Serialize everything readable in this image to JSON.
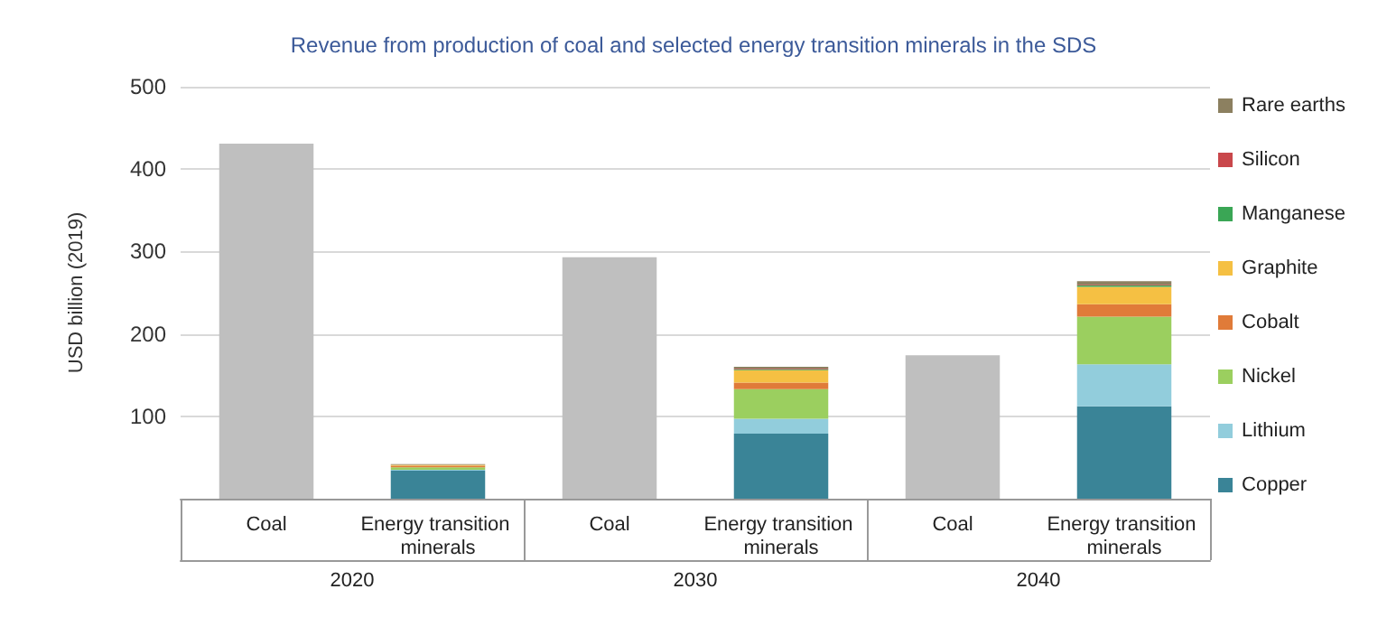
{
  "chart_data": {
    "type": "bar",
    "title": "Revenue from production of coal and selected energy transition minerals in the SDS",
    "ylabel": "USD billion (2019)",
    "categories": [
      "Coal",
      "Energy transition minerals",
      "Coal",
      "Energy transition minerals",
      "Coal",
      "Energy transition minerals"
    ],
    "annotations": [
      "2020",
      "2030",
      "2040"
    ],
    "stacked": true,
    "ylim": [
      0,
      500
    ],
    "yticks": [
      100,
      200,
      300,
      400,
      500
    ],
    "grid": "y",
    "legend": "right",
    "series": [
      {
        "color": "#bfbfbf",
        "values": [
          431,
          null,
          293,
          null,
          174,
          null
        ]
      },
      {
        "name": "Copper",
        "color": "#3a8497",
        "values": [
          null,
          34,
          null,
          79,
          null,
          112
        ]
      },
      {
        "name": "Lithium",
        "color": "#92cddc",
        "values": [
          null,
          1,
          null,
          18,
          null,
          51
        ]
      },
      {
        "name": "Nickel",
        "color": "#9bcf5f",
        "values": [
          null,
          3,
          null,
          36,
          null,
          58
        ]
      },
      {
        "name": "Cobalt",
        "color": "#e07b39",
        "values": [
          null,
          2,
          null,
          8,
          null,
          15
        ]
      },
      {
        "name": "Graphite",
        "color": "#f5c043",
        "values": [
          null,
          1,
          null,
          15,
          null,
          21
        ]
      },
      {
        "name": "Manganese",
        "color": "#3aa655",
        "values": [
          null,
          0,
          null,
          1,
          null,
          2
        ]
      },
      {
        "name": "Silicon",
        "color": "#c9474b",
        "values": [
          null,
          0,
          null,
          1,
          null,
          1
        ]
      },
      {
        "name": "Rare earths",
        "color": "#8c8060",
        "values": [
          null,
          1,
          null,
          2,
          null,
          4
        ]
      }
    ]
  }
}
